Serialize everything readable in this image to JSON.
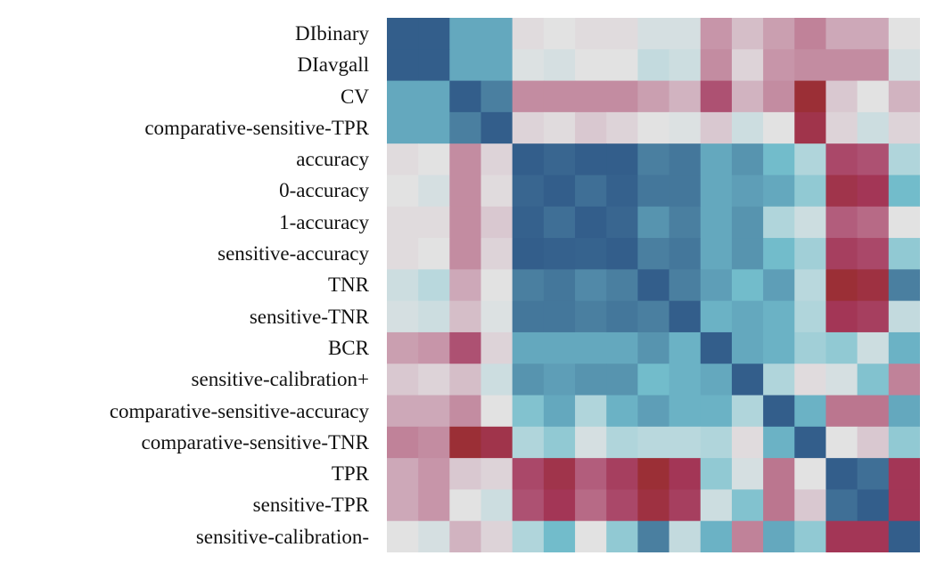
{
  "chart_data": {
    "type": "heatmap",
    "row_labels": [
      "DIbinary",
      "DIavgall",
      "CV",
      "comparative-sensitive-TPR",
      "accuracy",
      "0-accuracy",
      "1-accuracy",
      "sensitive-accuracy",
      "TNR",
      "sensitive-TNR",
      "BCR",
      "sensitive-calibration+",
      "comparative-sensitive-accuracy",
      "comparative-sensitive-TNR",
      "TPR",
      "sensitive-TPR",
      "sensitive-calibration-"
    ],
    "value_range": [
      -1,
      1
    ],
    "colorscale": {
      "high": "#335e8b",
      "mid": "#e2e2e2",
      "low": "#9b2f36"
    },
    "legend": "none",
    "values": [
      [
        1,
        1,
        0.6,
        0.6,
        -0.05,
        0,
        -0.05,
        -0.05,
        0.1,
        0.1,
        -0.4,
        -0.2,
        -0.35,
        -0.5,
        -0.3,
        -0.3,
        0
      ],
      [
        1,
        1,
        0.6,
        0.6,
        0.05,
        0.1,
        0,
        0,
        0.2,
        0.15,
        -0.45,
        -0.1,
        -0.4,
        -0.45,
        -0.45,
        -0.45,
        0.1
      ],
      [
        0.6,
        0.6,
        1,
        0.8,
        -0.45,
        -0.45,
        -0.45,
        -0.45,
        -0.35,
        -0.25,
        -0.7,
        -0.25,
        -0.45,
        -1,
        -0.15,
        0,
        -0.25
      ],
      [
        0.6,
        0.6,
        0.8,
        1,
        -0.1,
        -0.05,
        -0.15,
        -0.1,
        0,
        0.05,
        -0.15,
        0.15,
        0,
        -0.9,
        -0.1,
        0.15,
        -0.1
      ],
      [
        -0.05,
        0,
        -0.45,
        -0.1,
        1,
        0.95,
        1,
        1,
        0.8,
        0.85,
        0.6,
        0.7,
        0.5,
        0.3,
        -0.75,
        -0.7,
        0.3
      ],
      [
        0,
        0.1,
        -0.45,
        -0.05,
        0.95,
        1,
        0.9,
        0.98,
        0.85,
        0.85,
        0.6,
        0.65,
        0.6,
        0.4,
        -0.9,
        -0.85,
        0.5
      ],
      [
        -0.05,
        -0.05,
        -0.45,
        -0.15,
        0.98,
        0.9,
        1,
        0.95,
        0.7,
        0.8,
        0.6,
        0.7,
        0.3,
        0.15,
        -0.65,
        -0.6,
        0
      ],
      [
        -0.05,
        0,
        -0.45,
        -0.1,
        1,
        0.98,
        0.97,
        1,
        0.8,
        0.85,
        0.6,
        0.7,
        0.5,
        0.35,
        -0.8,
        -0.75,
        0.4
      ],
      [
        0.15,
        0.25,
        -0.3,
        0,
        0.8,
        0.85,
        0.75,
        0.8,
        1,
        0.8,
        0.65,
        0.5,
        0.65,
        0.25,
        -1,
        -0.95,
        0.8
      ],
      [
        0.1,
        0.15,
        -0.2,
        0.05,
        0.85,
        0.85,
        0.8,
        0.85,
        0.8,
        1,
        0.55,
        0.6,
        0.55,
        0.3,
        -0.85,
        -0.8,
        0.2
      ],
      [
        -0.35,
        -0.4,
        -0.7,
        -0.1,
        0.6,
        0.6,
        0.6,
        0.6,
        0.7,
        0.55,
        1,
        0.6,
        0.55,
        0.35,
        0.4,
        0.15,
        0.55
      ],
      [
        -0.15,
        -0.1,
        -0.2,
        0.15,
        0.7,
        0.65,
        0.7,
        0.7,
        0.5,
        0.55,
        0.6,
        1,
        0.3,
        -0.05,
        0.1,
        0.45,
        -0.5
      ],
      [
        -0.3,
        -0.3,
        -0.45,
        0,
        0.45,
        0.6,
        0.3,
        0.55,
        0.65,
        0.55,
        0.55,
        0.3,
        1,
        0.55,
        -0.55,
        -0.55,
        0.6
      ],
      [
        -0.5,
        -0.45,
        -1,
        -0.9,
        0.3,
        0.4,
        0.1,
        0.3,
        0.25,
        0.25,
        0.3,
        -0.05,
        0.55,
        1,
        0,
        -0.15,
        0.4
      ],
      [
        -0.3,
        -0.4,
        -0.15,
        -0.1,
        -0.75,
        -0.9,
        -0.65,
        -0.8,
        -1,
        -0.85,
        0.4,
        0.1,
        -0.55,
        0,
        1,
        0.9,
        -0.85
      ],
      [
        -0.3,
        -0.4,
        0,
        0.15,
        -0.7,
        -0.85,
        -0.6,
        -0.75,
        -0.95,
        -0.8,
        0.15,
        0.45,
        -0.55,
        -0.15,
        0.9,
        1,
        -0.85
      ],
      [
        0,
        0.1,
        -0.25,
        -0.1,
        0.3,
        0.5,
        0,
        0.4,
        0.8,
        0.2,
        0.55,
        -0.5,
        0.6,
        0.4,
        -0.85,
        -0.85,
        1
      ]
    ]
  }
}
